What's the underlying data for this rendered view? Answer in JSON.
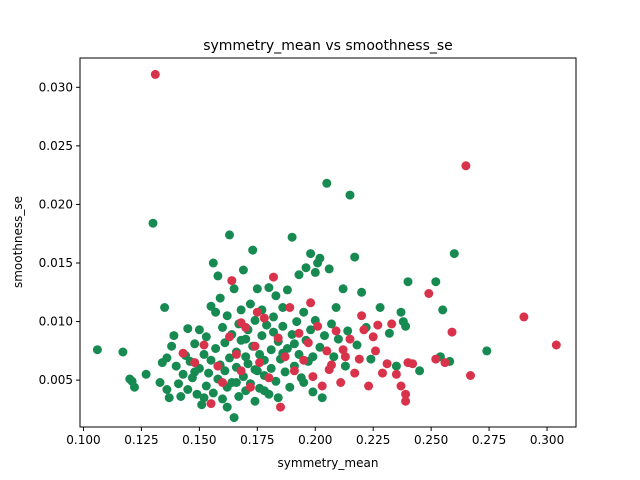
{
  "chart_data": {
    "type": "scatter",
    "title": "symmetry_mean vs smoothness_se",
    "xlabel": "symmetry_mean",
    "ylabel": "smoothness_se",
    "xlim": [
      0.0985,
      0.3125
    ],
    "ylim": [
      0.001,
      0.0325
    ],
    "xticks": [
      "0.100",
      "0.125",
      "0.150",
      "0.175",
      "0.200",
      "0.225",
      "0.250",
      "0.275",
      "0.300"
    ],
    "yticks": [
      "0.005",
      "0.010",
      "0.015",
      "0.020",
      "0.025",
      "0.030"
    ],
    "grid": false,
    "legend": "none",
    "series": [
      {
        "color": "#178a52",
        "points": [
          [
            0.106,
            0.0076
          ],
          [
            0.117,
            0.0074
          ],
          [
            0.12,
            0.0051
          ],
          [
            0.121,
            0.0049
          ],
          [
            0.122,
            0.0044
          ],
          [
            0.127,
            0.0055
          ],
          [
            0.13,
            0.0184
          ],
          [
            0.133,
            0.0048
          ],
          [
            0.134,
            0.0065
          ],
          [
            0.135,
            0.0112
          ],
          [
            0.136,
            0.0042
          ],
          [
            0.136,
            0.0069
          ],
          [
            0.137,
            0.0035
          ],
          [
            0.138,
            0.0079
          ],
          [
            0.139,
            0.0088
          ],
          [
            0.14,
            0.0062
          ],
          [
            0.141,
            0.0047
          ],
          [
            0.142,
            0.0036
          ],
          [
            0.143,
            0.0055
          ],
          [
            0.144,
            0.0071
          ],
          [
            0.145,
            0.0042
          ],
          [
            0.146,
            0.0066
          ],
          [
            0.147,
            0.0052
          ],
          [
            0.148,
            0.0081
          ],
          [
            0.149,
            0.0038
          ],
          [
            0.15,
            0.0093
          ],
          [
            0.15,
            0.006
          ],
          [
            0.151,
            0.0029
          ],
          [
            0.152,
            0.0072
          ],
          [
            0.153,
            0.0045
          ],
          [
            0.153,
            0.0087
          ],
          [
            0.154,
            0.0056
          ],
          [
            0.155,
            0.0113
          ],
          [
            0.155,
            0.0067
          ],
          [
            0.156,
            0.0039
          ],
          [
            0.156,
            0.015
          ],
          [
            0.157,
            0.0077
          ],
          [
            0.158,
            0.0139
          ],
          [
            0.158,
            0.0051
          ],
          [
            0.159,
            0.012
          ],
          [
            0.159,
            0.0063
          ],
          [
            0.16,
            0.0095
          ],
          [
            0.16,
            0.0034
          ],
          [
            0.161,
            0.0082
          ],
          [
            0.161,
            0.0058
          ],
          [
            0.162,
            0.0105
          ],
          [
            0.162,
            0.0044
          ],
          [
            0.163,
            0.0174
          ],
          [
            0.163,
            0.0069
          ],
          [
            0.164,
            0.0089
          ],
          [
            0.164,
            0.0048
          ],
          [
            0.165,
            0.0018
          ],
          [
            0.165,
            0.0128
          ],
          [
            0.166,
            0.0074
          ],
          [
            0.166,
            0.0061
          ],
          [
            0.167,
            0.0098
          ],
          [
            0.167,
            0.0036
          ],
          [
            0.168,
            0.0084
          ],
          [
            0.168,
            0.011
          ],
          [
            0.169,
            0.0053
          ],
          [
            0.169,
            0.0144
          ],
          [
            0.17,
            0.007
          ],
          [
            0.17,
            0.0041
          ],
          [
            0.171,
            0.0093
          ],
          [
            0.171,
            0.0064
          ],
          [
            0.172,
            0.0115
          ],
          [
            0.172,
            0.0047
          ],
          [
            0.173,
            0.0161
          ],
          [
            0.173,
            0.0079
          ],
          [
            0.174,
            0.0032
          ],
          [
            0.174,
            0.0101
          ],
          [
            0.175,
            0.0058
          ],
          [
            0.175,
            0.0128
          ],
          [
            0.176,
            0.0072
          ],
          [
            0.176,
            0.0043
          ],
          [
            0.177,
            0.0088
          ],
          [
            0.177,
            0.011
          ],
          [
            0.178,
            0.0054
          ],
          [
            0.178,
            0.0067
          ],
          [
            0.179,
            0.0097
          ],
          [
            0.18,
            0.0038
          ],
          [
            0.18,
            0.0129
          ],
          [
            0.181,
            0.0076
          ],
          [
            0.181,
            0.006
          ],
          [
            0.182,
            0.0104
          ],
          [
            0.183,
            0.0049
          ],
          [
            0.183,
            0.0122
          ],
          [
            0.184,
            0.0083
          ],
          [
            0.184,
            0.0035
          ],
          [
            0.185,
            0.0068
          ],
          [
            0.186,
            0.0096
          ],
          [
            0.186,
            0.0112
          ],
          [
            0.187,
            0.0057
          ],
          [
            0.188,
            0.0077
          ],
          [
            0.188,
            0.0127
          ],
          [
            0.189,
            0.0044
          ],
          [
            0.19,
            0.0172
          ],
          [
            0.19,
            0.0089
          ],
          [
            0.191,
            0.0062
          ],
          [
            0.192,
            0.01
          ],
          [
            0.193,
            0.014
          ],
          [
            0.193,
            0.0072
          ],
          [
            0.194,
            0.0052
          ],
          [
            0.195,
            0.0108
          ],
          [
            0.196,
            0.0084
          ],
          [
            0.196,
            0.0146
          ],
          [
            0.197,
            0.0066
          ],
          [
            0.198,
            0.0093
          ],
          [
            0.198,
            0.0158
          ],
          [
            0.199,
            0.004
          ],
          [
            0.2,
            0.0142
          ],
          [
            0.2,
            0.0101
          ],
          [
            0.201,
            0.015
          ],
          [
            0.202,
            0.0078
          ],
          [
            0.202,
            0.0154
          ],
          [
            0.203,
            0.0035
          ],
          [
            0.204,
            0.0088
          ],
          [
            0.205,
            0.0218
          ],
          [
            0.206,
            0.0145
          ],
          [
            0.207,
            0.0098
          ],
          [
            0.208,
            0.007
          ],
          [
            0.209,
            0.0112
          ],
          [
            0.21,
            0.0085
          ],
          [
            0.212,
            0.0128
          ],
          [
            0.213,
            0.0062
          ],
          [
            0.214,
            0.0092
          ],
          [
            0.215,
            0.0208
          ],
          [
            0.217,
            0.0155
          ],
          [
            0.218,
            0.008
          ],
          [
            0.22,
            0.0125
          ],
          [
            0.222,
            0.0095
          ],
          [
            0.224,
            0.0068
          ],
          [
            0.228,
            0.0112
          ],
          [
            0.232,
            0.009
          ],
          [
            0.235,
            0.0062
          ],
          [
            0.237,
            0.0108
          ],
          [
            0.238,
            0.01
          ],
          [
            0.239,
            0.0096
          ],
          [
            0.24,
            0.0134
          ],
          [
            0.245,
            0.0058
          ],
          [
            0.252,
            0.0134
          ],
          [
            0.254,
            0.007
          ],
          [
            0.255,
            0.011
          ],
          [
            0.258,
            0.0066
          ],
          [
            0.26,
            0.0158
          ],
          [
            0.274,
            0.0075
          ],
          [
            0.145,
            0.0094
          ],
          [
            0.148,
            0.0057
          ],
          [
            0.152,
            0.0035
          ],
          [
            0.157,
            0.0108
          ],
          [
            0.162,
            0.0027
          ],
          [
            0.166,
            0.0048
          ],
          [
            0.17,
            0.0085
          ],
          [
            0.174,
            0.0059
          ],
          [
            0.178,
            0.0041
          ],
          [
            0.182,
            0.0091
          ],
          [
            0.186,
            0.0073
          ],
          [
            0.191,
            0.0081
          ],
          [
            0.195,
            0.0048
          ],
          [
            0.199,
            0.007
          ]
        ]
      },
      {
        "color": "#d8334a",
        "points": [
          [
            0.131,
            0.0311
          ],
          [
            0.143,
            0.0073
          ],
          [
            0.148,
            0.0065
          ],
          [
            0.152,
            0.008
          ],
          [
            0.155,
            0.003
          ],
          [
            0.158,
            0.0062
          ],
          [
            0.16,
            0.0048
          ],
          [
            0.163,
            0.0087
          ],
          [
            0.164,
            0.0135
          ],
          [
            0.166,
            0.0072
          ],
          [
            0.168,
            0.0058
          ],
          [
            0.17,
            0.0095
          ],
          [
            0.172,
            0.0044
          ],
          [
            0.174,
            0.0079
          ],
          [
            0.176,
            0.0065
          ],
          [
            0.178,
            0.0103
          ],
          [
            0.18,
            0.0052
          ],
          [
            0.182,
            0.0138
          ],
          [
            0.184,
            0.0086
          ],
          [
            0.185,
            0.0027
          ],
          [
            0.187,
            0.007
          ],
          [
            0.189,
            0.0112
          ],
          [
            0.191,
            0.0058
          ],
          [
            0.193,
            0.009
          ],
          [
            0.195,
            0.0067
          ],
          [
            0.197,
            0.0082
          ],
          [
            0.199,
            0.0053
          ],
          [
            0.201,
            0.0096
          ],
          [
            0.203,
            0.0045
          ],
          [
            0.205,
            0.0075
          ],
          [
            0.207,
            0.0063
          ],
          [
            0.209,
            0.0092
          ],
          [
            0.211,
            0.0048
          ],
          [
            0.213,
            0.007
          ],
          [
            0.215,
            0.0085
          ],
          [
            0.217,
            0.0056
          ],
          [
            0.219,
            0.0068
          ],
          [
            0.221,
            0.0093
          ],
          [
            0.223,
            0.0045
          ],
          [
            0.225,
            0.0087
          ],
          [
            0.227,
            0.0097
          ],
          [
            0.229,
            0.0056
          ],
          [
            0.231,
            0.0064
          ],
          [
            0.233,
            0.0098
          ],
          [
            0.235,
            0.0055
          ],
          [
            0.237,
            0.0045
          ],
          [
            0.239,
            0.0038
          ],
          [
            0.239,
            0.0032
          ],
          [
            0.24,
            0.0065
          ],
          [
            0.242,
            0.0064
          ],
          [
            0.249,
            0.0124
          ],
          [
            0.252,
            0.0068
          ],
          [
            0.256,
            0.0065
          ],
          [
            0.259,
            0.0091
          ],
          [
            0.265,
            0.0233
          ],
          [
            0.267,
            0.0054
          ],
          [
            0.29,
            0.0104
          ],
          [
            0.304,
            0.008
          ],
          [
            0.198,
            0.0116
          ],
          [
            0.212,
            0.0076
          ],
          [
            0.22,
            0.0105
          ],
          [
            0.226,
            0.0075
          ],
          [
            0.175,
            0.0108
          ],
          [
            0.168,
            0.0099
          ],
          [
            0.206,
            0.0059
          ]
        ]
      }
    ]
  }
}
